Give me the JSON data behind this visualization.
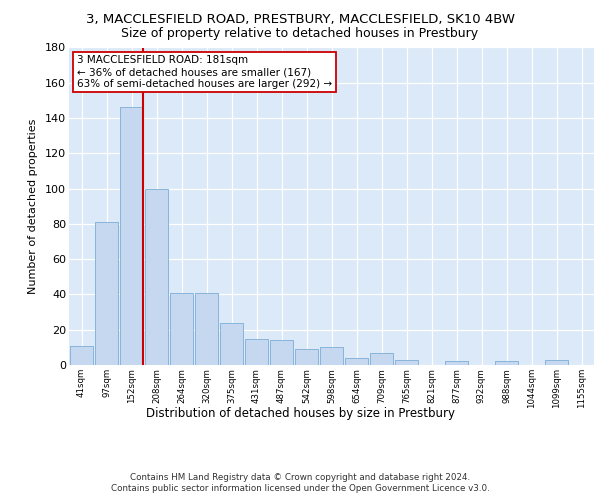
{
  "title_line1": "3, MACCLESFIELD ROAD, PRESTBURY, MACCLESFIELD, SK10 4BW",
  "title_line2": "Size of property relative to detached houses in Prestbury",
  "xlabel": "Distribution of detached houses by size in Prestbury",
  "ylabel": "Number of detached properties",
  "categories": [
    "41sqm",
    "97sqm",
    "152sqm",
    "208sqm",
    "264sqm",
    "320sqm",
    "375sqm",
    "431sqm",
    "487sqm",
    "542sqm",
    "598sqm",
    "654sqm",
    "709sqm",
    "765sqm",
    "821sqm",
    "877sqm",
    "932sqm",
    "988sqm",
    "1044sqm",
    "1099sqm",
    "1155sqm"
  ],
  "values": [
    11,
    81,
    146,
    100,
    41,
    41,
    24,
    15,
    14,
    9,
    10,
    4,
    7,
    3,
    0,
    2,
    0,
    2,
    0,
    3,
    0
  ],
  "bar_color": "#c5d8f0",
  "bar_edge_color": "#7aadd4",
  "vline_x": 2.0,
  "vline_color": "#cc0000",
  "annotation_text": "3 MACCLESFIELD ROAD: 181sqm\n← 36% of detached houses are smaller (167)\n63% of semi-detached houses are larger (292) →",
  "annotation_box_color": "#ffffff",
  "annotation_box_edge": "#cc0000",
  "ylim": [
    0,
    180
  ],
  "yticks": [
    0,
    20,
    40,
    60,
    80,
    100,
    120,
    140,
    160,
    180
  ],
  "bg_color": "#dce9f8",
  "fig_bg_color": "#ffffff",
  "footnote_line1": "Contains HM Land Registry data © Crown copyright and database right 2024.",
  "footnote_line2": "Contains public sector information licensed under the Open Government Licence v3.0."
}
